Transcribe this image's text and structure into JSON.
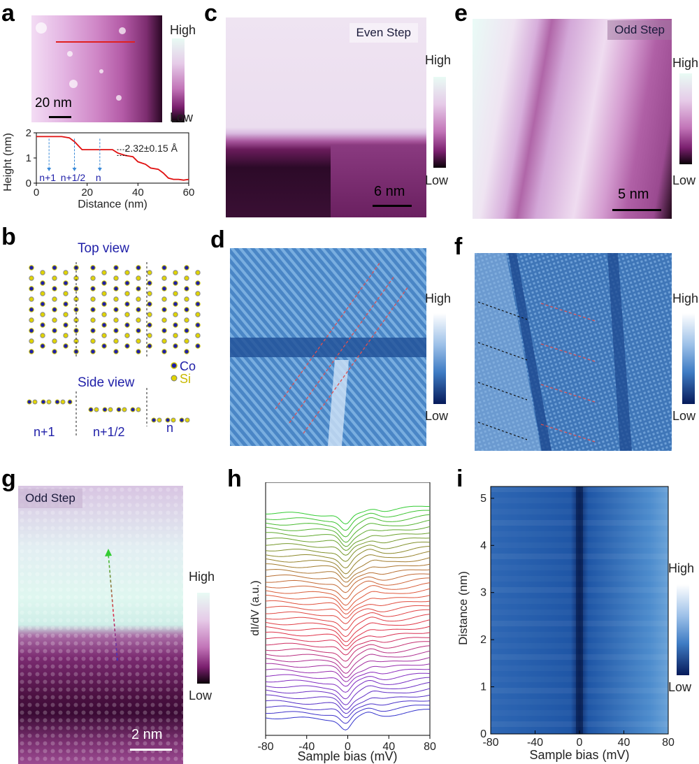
{
  "panels": {
    "a": {
      "label": "a",
      "colorbar": {
        "high": "High",
        "low": "Low"
      },
      "scale": "20 nm",
      "profile": {
        "ylabel": "Height (nm)",
        "xlabel": "Distance (nm)",
        "xticks": [
          "0",
          "20",
          "40",
          "60"
        ],
        "yticks": [
          "0",
          "1",
          "2"
        ],
        "annotation": "2.32±0.15 Å",
        "steps": [
          "n+1",
          "n+1/2",
          "n"
        ]
      }
    },
    "b": {
      "label": "b",
      "top_view": "Top view",
      "side_view": "Side view",
      "legend": [
        "Co",
        "Si"
      ],
      "layers": [
        "n+1",
        "n+1/2",
        "n"
      ]
    },
    "c": {
      "label": "c",
      "tag": "Even Step",
      "colorbar": {
        "high": "High",
        "low": "Low"
      },
      "scale": "6 nm"
    },
    "d": {
      "label": "d",
      "colorbar": {
        "high": "High",
        "low": "Low"
      }
    },
    "e": {
      "label": "e",
      "tag": "Odd Step",
      "colorbar": {
        "high": "High",
        "low": "Low"
      },
      "scale": "5 nm"
    },
    "f": {
      "label": "f",
      "colorbar": {
        "high": "High",
        "low": "Low"
      }
    },
    "g": {
      "label": "g",
      "tag": "Odd Step",
      "colorbar": {
        "high": "High",
        "low": "Low"
      },
      "scale": "2 nm"
    },
    "h": {
      "label": "h",
      "ylabel": "dI/dV (a.u.)",
      "xlabel": "Sample bias (mV)",
      "xticks": [
        "-80",
        "-40",
        "0",
        "40",
        "80"
      ]
    },
    "i": {
      "label": "i",
      "ylabel": "Distance (nm)",
      "xlabel": "Sample bias (mV)",
      "xticks": [
        "-80",
        "-40",
        "0",
        "40",
        "80"
      ],
      "yticks": [
        "0",
        "1",
        "2",
        "3",
        "4",
        "5"
      ],
      "colorbar": {
        "high": "High",
        "low": "Low"
      }
    }
  },
  "chart_data": [
    {
      "type": "line",
      "panel": "a",
      "xlabel": "Distance (nm)",
      "ylabel": "Height (nm)",
      "xlim": [
        0,
        60
      ],
      "ylim": [
        0,
        2
      ],
      "x": [
        0,
        5,
        10,
        13,
        15,
        18,
        22,
        26,
        30,
        32,
        35,
        38,
        40,
        43,
        45,
        48,
        50,
        52,
        54,
        56,
        58,
        60
      ],
      "y": [
        1.85,
        1.85,
        1.85,
        1.8,
        1.65,
        1.33,
        1.33,
        1.33,
        1.33,
        1.2,
        1.1,
        1.05,
        0.85,
        0.75,
        0.6,
        0.55,
        0.4,
        0.2,
        0.15,
        0.15,
        0.12,
        0.15
      ]
    },
    {
      "type": "line",
      "panel": "h",
      "xlabel": "Sample bias (mV)",
      "ylabel": "dI/dV (a.u.)",
      "xlim": [
        -80,
        80
      ],
      "series_count": 40
    }
  ],
  "colors": {
    "scheme_purple": [
      "#0a0208",
      "#7a1f6e",
      "#c274b8",
      "#e6cbe8",
      "#e8fbf4"
    ],
    "scheme_blue": [
      "#061a5a",
      "#1b4f9e",
      "#5a92cc",
      "#bcd6ee",
      "#ffffff"
    ],
    "spectra_gradient": [
      "#3333cc",
      "#8a2bc0",
      "#e0304a",
      "#e05a3a",
      "#8a8a2a",
      "#33cc33"
    ]
  }
}
